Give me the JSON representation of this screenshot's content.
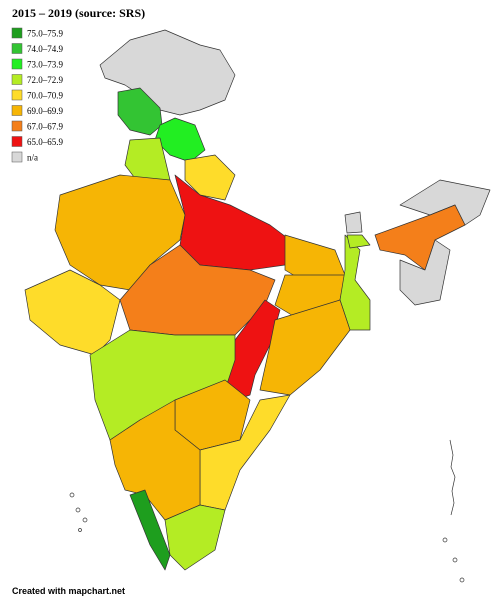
{
  "title": "2015 – 2019 (source: SRS)",
  "legend": [
    {
      "label": "75.0–75.9",
      "color": "#1e9e1e"
    },
    {
      "label": "74.0–74.9",
      "color": "#33c433"
    },
    {
      "label": "73.0–73.9",
      "color": "#22ee22"
    },
    {
      "label": "72.0–72.9",
      "color": "#b4ec24"
    },
    {
      "label": "70.0–70.9",
      "color": "#fedc2a"
    },
    {
      "label": "69.0–69.9",
      "color": "#f6b505"
    },
    {
      "label": "67.0–67.9",
      "color": "#f47f1a"
    },
    {
      "label": "65.0–65.9",
      "color": "#ee1212"
    },
    {
      "label": "n/a",
      "color": "#d8d8d8"
    }
  ],
  "footer": "Created with mapchart.net"
}
